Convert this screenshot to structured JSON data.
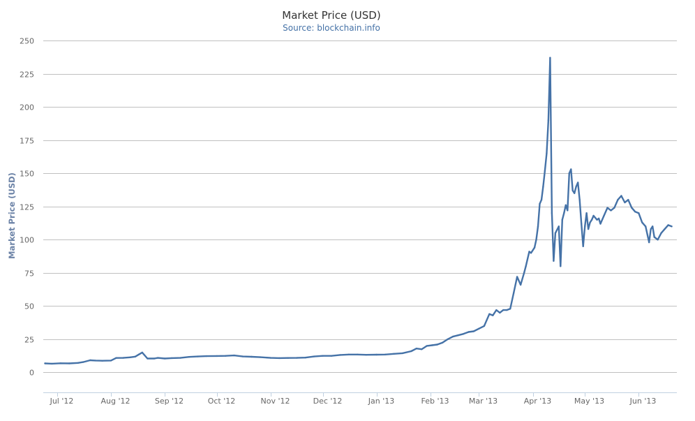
{
  "chart_data": {
    "type": "line",
    "title": "Market Price (USD)",
    "subtitle": "Source: blockchain.info",
    "ylabel": "Market Price (USD)",
    "xlabel": "",
    "ylim": [
      -15,
      250
    ],
    "yticks": [
      0,
      25,
      50,
      75,
      100,
      125,
      150,
      175,
      200,
      225,
      250
    ],
    "xlim": [
      "2012-06-23",
      "2013-06-23"
    ],
    "xticks": [
      {
        "date": "2012-07-01",
        "label": "Jul '12"
      },
      {
        "date": "2012-08-01",
        "label": "Aug '12"
      },
      {
        "date": "2012-09-01",
        "label": "Sep '12"
      },
      {
        "date": "2012-10-01",
        "label": "Oct '12"
      },
      {
        "date": "2012-11-01",
        "label": "Nov '12"
      },
      {
        "date": "2012-12-01",
        "label": "Dec '12"
      },
      {
        "date": "2013-01-01",
        "label": "Jan '13"
      },
      {
        "date": "2013-02-01",
        "label": "Feb '13"
      },
      {
        "date": "2013-03-01",
        "label": "Mar '13"
      },
      {
        "date": "2013-04-01",
        "label": "Apr '13"
      },
      {
        "date": "2013-05-01",
        "label": "May '13"
      },
      {
        "date": "2013-06-01",
        "label": "Jun '13"
      }
    ],
    "grid": true,
    "legend": "none",
    "colors": {
      "series": "#4572A7"
    },
    "series": [
      {
        "name": "",
        "x": [
          "2012-06-24",
          "2012-06-28",
          "2012-07-03",
          "2012-07-08",
          "2012-07-13",
          "2012-07-16",
          "2012-07-20",
          "2012-07-23",
          "2012-07-27",
          "2012-08-01",
          "2012-08-04",
          "2012-08-08",
          "2012-08-12",
          "2012-08-15",
          "2012-08-17",
          "2012-08-19",
          "2012-08-22",
          "2012-08-26",
          "2012-08-28",
          "2012-09-01",
          "2012-09-05",
          "2012-09-10",
          "2012-09-15",
          "2012-09-20",
          "2012-09-25",
          "2012-10-01",
          "2012-10-06",
          "2012-10-11",
          "2012-10-16",
          "2012-10-21",
          "2012-10-26",
          "2012-11-01",
          "2012-11-06",
          "2012-11-11",
          "2012-11-16",
          "2012-11-21",
          "2012-11-26",
          "2012-12-01",
          "2012-12-06",
          "2012-12-11",
          "2012-12-16",
          "2012-12-21",
          "2012-12-26",
          "2013-01-01",
          "2013-01-06",
          "2013-01-11",
          "2013-01-16",
          "2013-01-21",
          "2013-01-24",
          "2013-01-27",
          "2013-01-30",
          "2013-02-02",
          "2013-02-05",
          "2013-02-08",
          "2013-02-11",
          "2013-02-14",
          "2013-02-17",
          "2013-02-20",
          "2013-02-23",
          "2013-02-26",
          "2013-03-01",
          "2013-03-04",
          "2013-03-07",
          "2013-03-09",
          "2013-03-11",
          "2013-03-13",
          "2013-03-15",
          "2013-03-17",
          "2013-03-19",
          "2013-03-21",
          "2013-03-23",
          "2013-03-25",
          "2013-03-27",
          "2013-03-28",
          "2013-03-30",
          "2013-03-31",
          "2013-04-02",
          "2013-04-03",
          "2013-04-04",
          "2013-04-05",
          "2013-04-06",
          "2013-04-07",
          "2013-04-08",
          "2013-04-09",
          "2013-04-10",
          "2013-04-11",
          "2013-04-12",
          "2013-04-13",
          "2013-04-14",
          "2013-04-16",
          "2013-04-17",
          "2013-04-18",
          "2013-04-19",
          "2013-04-20",
          "2013-04-21",
          "2013-04-22",
          "2013-04-23",
          "2013-04-24",
          "2013-04-25",
          "2013-04-26",
          "2013-04-27",
          "2013-04-28",
          "2013-04-29",
          "2013-04-30",
          "2013-05-01",
          "2013-05-02",
          "2013-05-03",
          "2013-05-04",
          "2013-05-05",
          "2013-05-06",
          "2013-05-08",
          "2013-05-09",
          "2013-05-10",
          "2013-05-12",
          "2013-05-14",
          "2013-05-16",
          "2013-05-18",
          "2013-05-20",
          "2013-05-22",
          "2013-05-24",
          "2013-05-26",
          "2013-05-28",
          "2013-05-30",
          "2013-06-01",
          "2013-06-03",
          "2013-06-05",
          "2013-06-07",
          "2013-06-08",
          "2013-06-09",
          "2013-06-10",
          "2013-06-12",
          "2013-06-14",
          "2013-06-16",
          "2013-06-18",
          "2013-06-20"
        ],
        "values": [
          6.8,
          6.6,
          6.9,
          6.8,
          7.2,
          7.8,
          9.2,
          9.0,
          8.8,
          9.0,
          10.9,
          11.0,
          11.4,
          11.9,
          13.5,
          15.0,
          10.5,
          10.5,
          11.0,
          10.5,
          10.8,
          11.0,
          11.7,
          12.0,
          12.3,
          12.4,
          12.5,
          12.8,
          12.0,
          11.8,
          11.5,
          11.0,
          10.8,
          10.9,
          11.0,
          11.2,
          12.0,
          12.5,
          12.5,
          13.2,
          13.5,
          13.5,
          13.3,
          13.4,
          13.5,
          14.0,
          14.5,
          16.0,
          18.0,
          17.5,
          20.0,
          20.5,
          21.0,
          22.5,
          25.0,
          27.0,
          28.0,
          29.0,
          30.5,
          31.0,
          33.0,
          35.0,
          44.0,
          43.0,
          47.0,
          45.0,
          47.0,
          47.0,
          48.0,
          60.0,
          72.0,
          66.0,
          75.0,
          80.0,
          91.0,
          90.0,
          94.0,
          100.0,
          110.0,
          127.0,
          130.0,
          140.0,
          152.0,
          165.0,
          190.0,
          237.0,
          120.0,
          84.0,
          105.0,
          110.0,
          80.0,
          115.0,
          120.0,
          126.0,
          122.0,
          150.0,
          153.0,
          137.0,
          135.0,
          140.0,
          143.0,
          130.0,
          112.0,
          95.0,
          110.0,
          120.0,
          108.0,
          113.0,
          115.0,
          118.0,
          115.0,
          116.0,
          112.0,
          118.0,
          124.0,
          122.0,
          124.0,
          130.0,
          133.0,
          128.0,
          130.0,
          124.0,
          121.0,
          120.0,
          113.0,
          110.0,
          98.0,
          108.0,
          110.0,
          102.0,
          100.0,
          105.0,
          108.0,
          111.0,
          110.0
        ]
      }
    ]
  }
}
